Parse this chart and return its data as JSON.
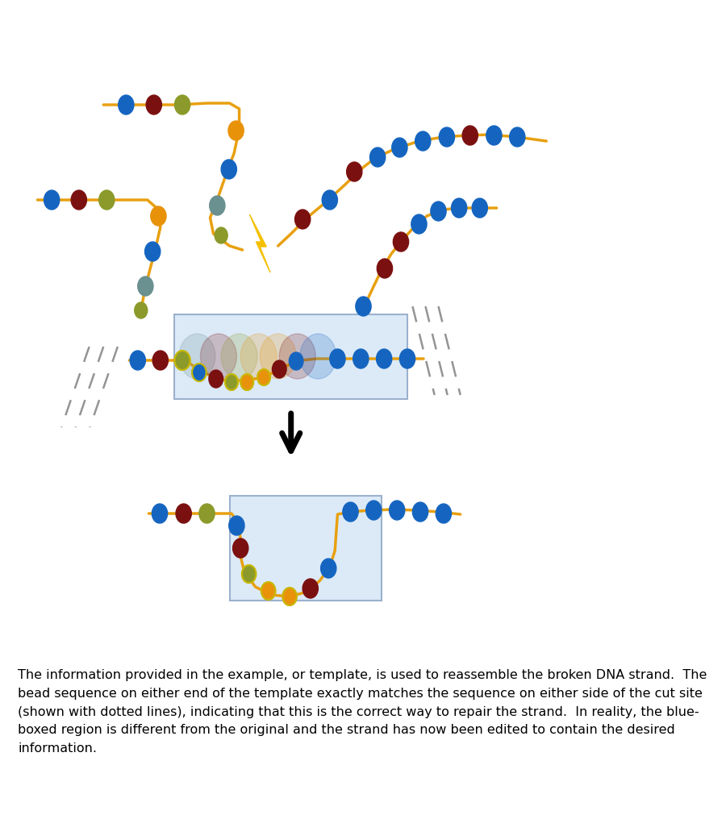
{
  "bead_colors": {
    "blue": "#1565C0",
    "dark_red": "#7B1010",
    "olive": "#8B9A2A",
    "orange": "#E8920A",
    "teal": "#6A9090"
  },
  "background_color": "#FFFFFF",
  "line_color": "#E8A010",
  "box_color": "#D8E8F8",
  "box_edge_color": "#90A8C8",
  "dashed_line_color": "#888888",
  "text": "The information provided in the example, or template, is used to reassemble the broken DNA strand.  The\nbead sequence on either end of the template exactly matches the sequence on either side of the cut site\n(shown with dotted lines), indicating that this is the correct way to repair the strand.  In reality, the blue-\nboxed region is different from the original and the strand has now been edited to contain the desired\ninformation.",
  "text_fontsize": 11.5
}
